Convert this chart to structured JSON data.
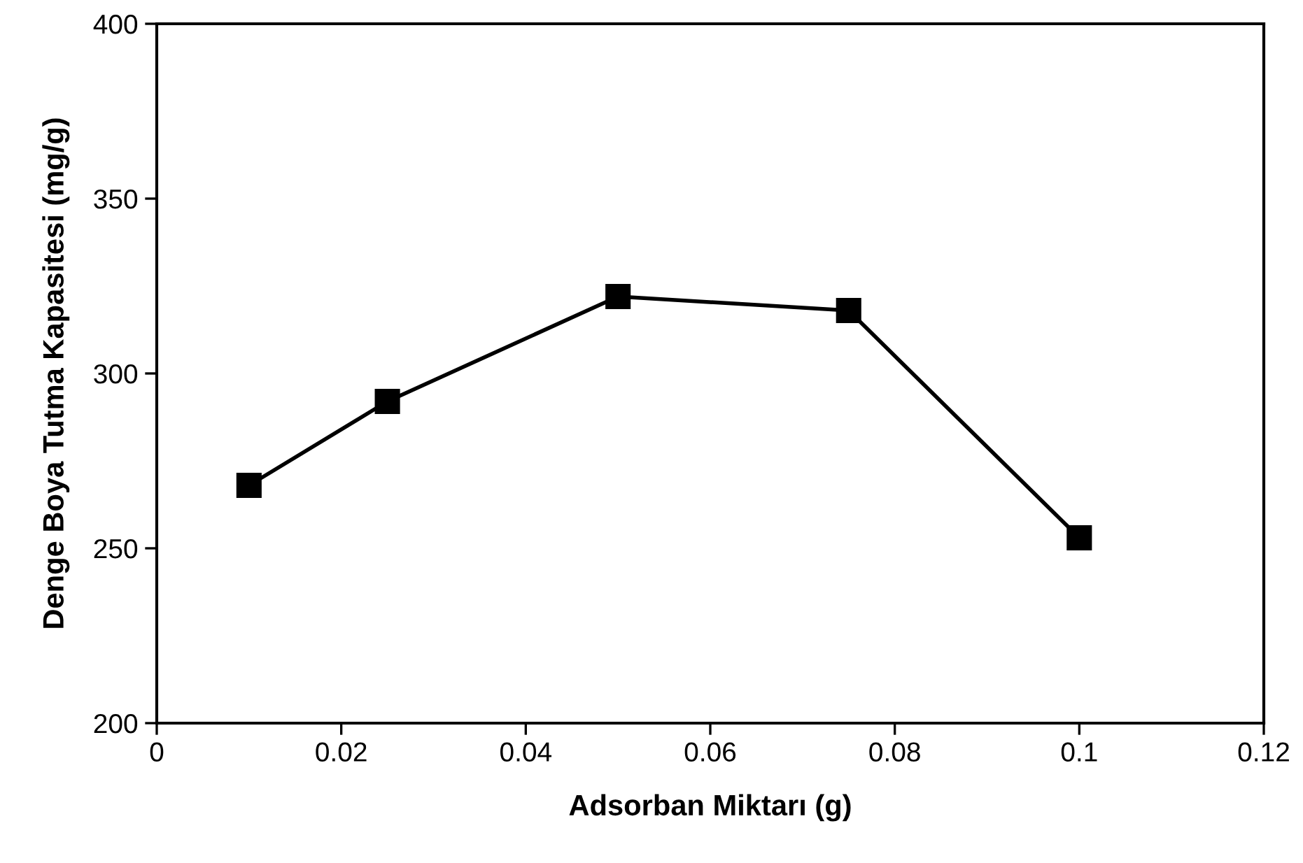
{
  "chart_data": {
    "type": "line",
    "xlabel": "Adsorban Miktarı (g)",
    "ylabel": "Denge Boya Tutma Kapasitesi (mg/g)",
    "x": [
      0.01,
      0.025,
      0.05,
      0.075,
      0.1
    ],
    "series": [
      {
        "color": "#000000",
        "values": [
          268,
          292,
          322,
          318,
          253
        ]
      }
    ],
    "xlim": [
      0,
      0.12
    ],
    "xticks": [
      0,
      0.02,
      0.04,
      0.06,
      0.08,
      0.1,
      0.12
    ],
    "ylim": [
      200,
      400
    ],
    "yticks": [
      200,
      250,
      300,
      350,
      400
    ],
    "marker": "square",
    "line_style": "solid",
    "grid": false
  }
}
